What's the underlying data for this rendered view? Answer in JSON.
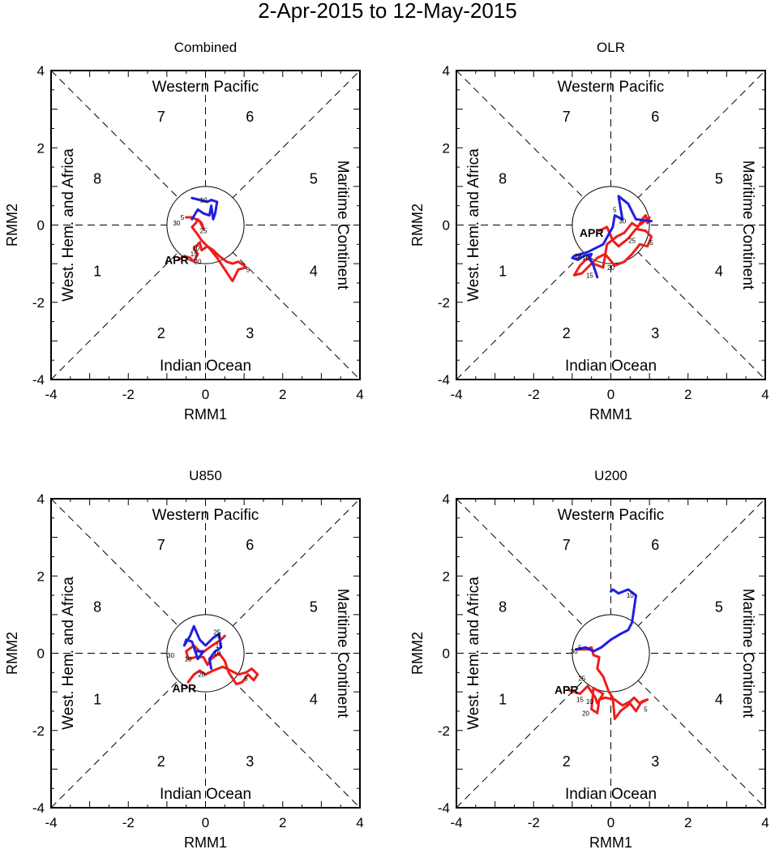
{
  "figure_title": "2-Apr-2015 to 12-May-2015",
  "colors": {
    "april": "#ee1c1c",
    "may": "#1f1fe0",
    "axis": "#000000"
  },
  "phase_labels": {
    "top": "Western Pacific",
    "bottom": "Indian Ocean",
    "left": "West. Hem. and Africa",
    "right": "Maritime Continent",
    "numbers": [
      "1",
      "2",
      "3",
      "4",
      "5",
      "6",
      "7",
      "8"
    ]
  },
  "chart_data": [
    {
      "type": "line",
      "title": "Combined",
      "xlabel": "RMM1",
      "ylabel": "RMM2",
      "xlim": [
        -4,
        4
      ],
      "ylim": [
        -4,
        4
      ],
      "xticks": [
        "-4",
        "-2",
        "0",
        "2",
        "4"
      ],
      "yticks": [
        "-4",
        "-2",
        "0",
        "2",
        "4"
      ],
      "month_label": "APR",
      "series": [
        {
          "name": "April",
          "color": "#ee1c1c",
          "x": [
            -0.7,
            -0.55,
            -0.4,
            -0.3,
            -0.2,
            -0.3,
            -0.15,
            -0.1,
            0.05,
            0.2,
            0.35,
            0.55,
            0.7,
            0.85,
            1.0,
            1.05,
            0.85,
            0.7,
            0.3,
            0.1,
            -0.1,
            -0.2,
            -0.35,
            -0.25,
            -0.2,
            -0.1,
            -0.05,
            -0.15,
            -0.35,
            -0.5
          ],
          "y": [
            -0.9,
            -0.8,
            -0.85,
            -0.95,
            -0.75,
            -0.6,
            -0.45,
            -0.65,
            -0.55,
            -0.65,
            -0.8,
            -0.95,
            -1.0,
            -0.95,
            -1.05,
            -1.1,
            -1.15,
            -1.45,
            -0.85,
            -0.6,
            -0.4,
            -0.25,
            -0.05,
            0.05,
            0.15,
            0.05,
            -0.1,
            0.1,
            0.2,
            0.2
          ]
        },
        {
          "name": "May",
          "color": "#1f1fe0",
          "x": [
            -0.35,
            -0.2,
            -0.05,
            0.1,
            0.15,
            0.2,
            0.25,
            0.3,
            0.15,
            0.05,
            -0.15,
            -0.35
          ],
          "y": [
            0.15,
            0.4,
            0.3,
            0.25,
            0.5,
            0.15,
            0.3,
            0.6,
            0.65,
            0.6,
            0.65,
            0.7
          ]
        }
      ],
      "annotations": [
        {
          "text": "APR",
          "x": -0.75,
          "y": -0.9,
          "size": "large",
          "color": "#ee1c1c"
        },
        {
          "text": "5",
          "x": 1.1,
          "y": -1.15,
          "size": "small",
          "color": "#000000"
        },
        {
          "text": "10",
          "x": -0.25,
          "y": -0.6,
          "size": "small",
          "color": "#000000"
        },
        {
          "text": "15",
          "x": -0.3,
          "y": -0.75,
          "size": "small",
          "color": "#000000"
        },
        {
          "text": "20",
          "x": -0.2,
          "y": -0.95,
          "size": "small",
          "color": "#000000"
        },
        {
          "text": "25",
          "x": -0.05,
          "y": -0.15,
          "size": "small",
          "color": "#000000"
        },
        {
          "text": "30",
          "x": -0.75,
          "y": 0.05,
          "size": "small",
          "color": "#000000"
        },
        {
          "text": "5",
          "x": -0.6,
          "y": 0.2,
          "size": "small",
          "color": "#000000"
        },
        {
          "text": "10",
          "x": -0.05,
          "y": 0.65,
          "size": "small",
          "color": "#000000"
        }
      ]
    },
    {
      "type": "line",
      "title": "OLR",
      "xlabel": "RMM1",
      "ylabel": "RMM2",
      "xlim": [
        -4,
        4
      ],
      "ylim": [
        -4,
        4
      ],
      "xticks": [
        "-4",
        "-2",
        "0",
        "2",
        "4"
      ],
      "yticks": [
        "-4",
        "-2",
        "0",
        "2",
        "4"
      ],
      "month_label": "APR",
      "series": [
        {
          "name": "April",
          "color": "#ee1c1c",
          "x": [
            -0.3,
            -0.1,
            0.05,
            0.2,
            0.45,
            0.65,
            0.9,
            1.05,
            0.95,
            0.75,
            0.55,
            0.35,
            0.1,
            -0.15,
            -0.35,
            -0.55,
            -0.75,
            -0.95,
            -0.8,
            -0.6,
            -0.45,
            -0.2,
            -0.1,
            0.15,
            0.35,
            0.55,
            0.7,
            0.85,
            0.9,
            0.95,
            1.0,
            0.75
          ],
          "y": [
            -0.15,
            -0.05,
            -0.4,
            -0.55,
            -0.35,
            -0.1,
            -0.15,
            -0.3,
            -0.55,
            -0.5,
            -0.75,
            -0.95,
            -1.05,
            -0.75,
            -0.85,
            -1.05,
            -1.25,
            -1.3,
            -1.05,
            -0.85,
            -1.0,
            -1.1,
            -0.5,
            -0.3,
            -0.2,
            0.05,
            -0.05,
            0.2,
            0.25,
            0.05,
            0.2,
            0.0
          ]
        },
        {
          "name": "May",
          "color": "#1f1fe0",
          "x": [
            -0.35,
            -0.45,
            -0.55,
            -0.5,
            -0.7,
            -0.85,
            -1.0,
            -0.95,
            -0.6,
            -0.2,
            0.05,
            0.1,
            0.3,
            0.2,
            0.45,
            0.65,
            1.05
          ],
          "y": [
            -1.35,
            -1.05,
            -0.85,
            -0.75,
            -0.8,
            -0.9,
            -0.85,
            -0.8,
            -0.7,
            -0.5,
            -0.05,
            0.25,
            0.15,
            0.75,
            0.55,
            0.15,
            0.1
          ]
        }
      ],
      "annotations": [
        {
          "text": "APR",
          "x": -0.5,
          "y": -0.2,
          "size": "large",
          "color": "#ee1c1c"
        },
        {
          "text": "5",
          "x": 1.05,
          "y": -0.45,
          "size": "small",
          "color": "#000000"
        },
        {
          "text": "10",
          "x": -0.65,
          "y": -0.85,
          "size": "small",
          "color": "#000000"
        },
        {
          "text": "15",
          "x": -0.55,
          "y": -1.3,
          "size": "small",
          "color": "#000000"
        },
        {
          "text": "20",
          "x": 0.0,
          "y": -1.1,
          "size": "small",
          "color": "#000000"
        },
        {
          "text": "25",
          "x": 0.55,
          "y": -0.4,
          "size": "small",
          "color": "#000000"
        },
        {
          "text": "30",
          "x": 0.3,
          "y": 0.1,
          "size": "small",
          "color": "#000000"
        },
        {
          "text": "5",
          "x": 0.1,
          "y": 0.4,
          "size": "small",
          "color": "#000000"
        },
        {
          "text": "10",
          "x": -0.85,
          "y": -0.8,
          "size": "small",
          "color": "#000000"
        }
      ]
    },
    {
      "type": "line",
      "title": "U850",
      "xlabel": "RMM1",
      "ylabel": "RMM2",
      "xlim": [
        -4,
        4
      ],
      "ylim": [
        -4,
        4
      ],
      "xticks": [
        "-4",
        "-2",
        "0",
        "2",
        "4"
      ],
      "yticks": [
        "-4",
        "-2",
        "0",
        "2",
        "4"
      ],
      "month_label": "APR",
      "series": [
        {
          "name": "April",
          "color": "#ee1c1c",
          "x": [
            -0.45,
            -0.3,
            -0.15,
            0.0,
            0.2,
            0.45,
            0.65,
            0.85,
            1.05,
            1.2,
            1.35,
            1.25,
            1.1,
            0.95,
            0.8,
            0.6,
            0.5,
            0.35,
            0.15,
            0.05,
            -0.05,
            -0.25,
            -0.45,
            -0.5,
            -0.3,
            -0.1,
            0.1,
            0.25,
            0.4,
            0.5
          ],
          "y": [
            -0.75,
            -0.55,
            -0.45,
            -0.55,
            -0.45,
            -0.35,
            -0.45,
            -0.55,
            -0.5,
            -0.4,
            -0.55,
            -0.7,
            -0.55,
            -0.75,
            -0.8,
            -0.5,
            -0.2,
            0.0,
            -0.15,
            -0.3,
            -0.1,
            -0.1,
            -0.15,
            0.05,
            0.2,
            0.0,
            0.15,
            0.25,
            0.35,
            0.45
          ]
        },
        {
          "name": "May",
          "color": "#1f1fe0",
          "x": [
            0.15,
            0.1,
            0.25,
            0.4,
            0.35,
            0.2,
            0.0,
            -0.15,
            -0.3,
            -0.4,
            -0.55,
            -0.5,
            -0.35,
            -0.2,
            -0.05,
            -0.25
          ],
          "y": [
            -0.4,
            -0.15,
            0.05,
            0.15,
            0.5,
            0.4,
            0.2,
            0.35,
            0.7,
            0.45,
            0.2,
            0.35,
            0.3,
            -0.15,
            0.05,
            0.05
          ]
        }
      ],
      "annotations": [
        {
          "text": "APR",
          "x": -0.55,
          "y": -0.9,
          "size": "large",
          "color": "#ee1c1c"
        },
        {
          "text": "5",
          "x": 1.05,
          "y": -0.65,
          "size": "small",
          "color": "#000000"
        },
        {
          "text": "10",
          "x": 0.3,
          "y": 0.0,
          "size": "small",
          "color": "#000000"
        },
        {
          "text": "15",
          "x": 0.35,
          "y": 0.2,
          "size": "small",
          "color": "#000000"
        },
        {
          "text": "20",
          "x": -0.1,
          "y": -0.55,
          "size": "small",
          "color": "#000000"
        },
        {
          "text": "25",
          "x": 0.3,
          "y": 0.55,
          "size": "small",
          "color": "#000000"
        },
        {
          "text": "30",
          "x": -0.9,
          "y": -0.05,
          "size": "small",
          "color": "#000000"
        },
        {
          "text": "5",
          "x": 0.35,
          "y": 0.45,
          "size": "small",
          "color": "#000000"
        },
        {
          "text": "10",
          "x": -0.45,
          "y": -0.15,
          "size": "small",
          "color": "#000000"
        }
      ]
    },
    {
      "type": "line",
      "title": "U200",
      "xlabel": "RMM1",
      "ylabel": "RMM2",
      "xlim": [
        -4,
        4
      ],
      "ylim": [
        -4,
        4
      ],
      "xticks": [
        "-4",
        "-2",
        "0",
        "2",
        "4"
      ],
      "yticks": [
        "-4",
        "-2",
        "0",
        "2",
        "4"
      ],
      "month_label": "APR",
      "series": [
        {
          "name": "April",
          "color": "#ee1c1c",
          "x": [
            -1.1,
            -0.8,
            -0.6,
            -0.4,
            -0.35,
            -0.2,
            -0.45,
            -0.5,
            -0.35,
            -0.3,
            -0.15,
            0.1,
            0.3,
            0.5,
            0.6,
            0.75,
            0.95,
            0.8,
            0.65,
            0.5,
            0.25,
            0.1,
            0.05,
            -0.05,
            -0.2,
            -0.35,
            -0.3,
            -0.45,
            -0.5,
            -0.7,
            -0.9,
            -0.55
          ],
          "y": [
            -0.95,
            -1.05,
            -0.85,
            -1.15,
            -1.3,
            -1.05,
            -0.9,
            -1.45,
            -1.55,
            -1.2,
            -1.15,
            -1.2,
            -1.35,
            -1.25,
            -1.15,
            -1.3,
            -1.2,
            -1.25,
            -1.5,
            -1.3,
            -1.5,
            -1.7,
            -1.15,
            -1.0,
            -0.6,
            -0.4,
            -0.1,
            -0.05,
            0.15,
            0.1,
            0.1,
            0.1
          ]
        },
        {
          "name": "May",
          "color": "#1f1fe0",
          "x": [
            -0.9,
            -0.65,
            -0.45,
            -0.25,
            0.0,
            0.25,
            0.45,
            0.55,
            0.65,
            0.45,
            0.2,
            0.05,
            0.0
          ],
          "y": [
            0.1,
            0.15,
            0.05,
            0.15,
            0.35,
            0.5,
            0.6,
            0.8,
            1.5,
            1.65,
            1.55,
            1.65,
            1.6
          ]
        }
      ],
      "annotations": [
        {
          "text": "APR",
          "x": -1.15,
          "y": -0.95,
          "size": "large",
          "color": "#ee1c1c"
        },
        {
          "text": "5",
          "x": 0.9,
          "y": -1.45,
          "size": "small",
          "color": "#000000"
        },
        {
          "text": "10",
          "x": -0.55,
          "y": -1.25,
          "size": "small",
          "color": "#000000"
        },
        {
          "text": "15",
          "x": -0.8,
          "y": -1.2,
          "size": "small",
          "color": "#000000"
        },
        {
          "text": "20",
          "x": -0.65,
          "y": -1.55,
          "size": "small",
          "color": "#000000"
        },
        {
          "text": "25",
          "x": -0.75,
          "y": -0.65,
          "size": "small",
          "color": "#000000"
        },
        {
          "text": "30",
          "x": -0.95,
          "y": 0.05,
          "size": "small",
          "color": "#000000"
        },
        {
          "text": "5",
          "x": -0.8,
          "y": 0.15,
          "size": "small",
          "color": "#000000"
        },
        {
          "text": "10",
          "x": 0.5,
          "y": 1.5,
          "size": "small",
          "color": "#000000"
        }
      ]
    }
  ]
}
